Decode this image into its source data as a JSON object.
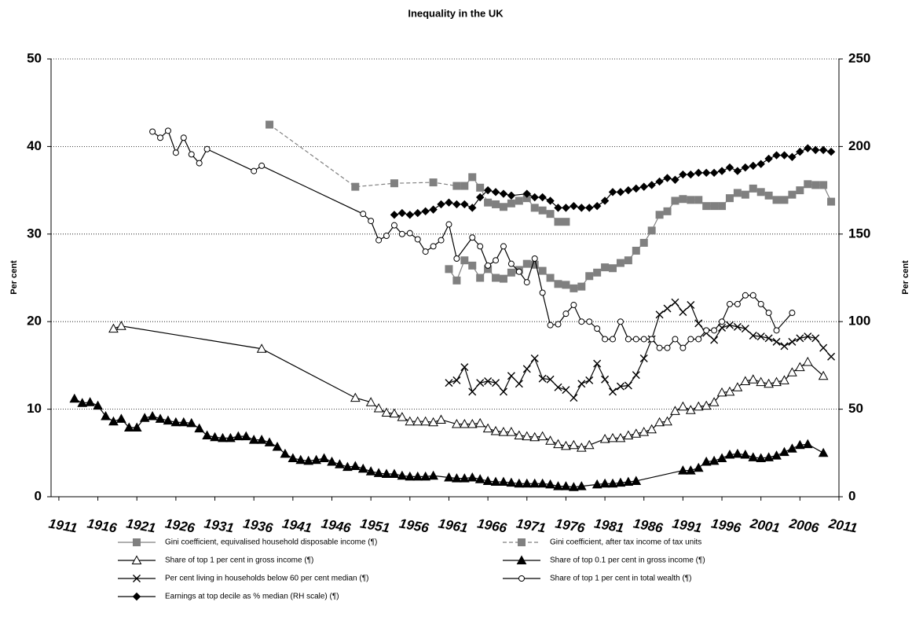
{
  "chart_data": {
    "type": "line",
    "title": "Inequality in the UK",
    "y_label": "Per cent",
    "y2_label": "Per cent",
    "xlim": [
      1910,
      2011
    ],
    "xticks": [
      1911,
      1916,
      1921,
      1926,
      1931,
      1936,
      1941,
      1946,
      1951,
      1956,
      1961,
      1966,
      1971,
      1976,
      1981,
      1986,
      1991,
      1996,
      2001,
      2006,
      2011
    ],
    "ylim": [
      0,
      50
    ],
    "yticks": [
      0,
      10,
      20,
      30,
      40,
      50
    ],
    "y2lim": [
      0,
      250
    ],
    "y2ticks": [
      0,
      50,
      100,
      150,
      200,
      250
    ],
    "grid": true,
    "series": [
      {
        "name": "Gini coefficient, equivalised household disposable income (¶)",
        "color": "#808080",
        "marker": "square",
        "dash": false,
        "axis": "y",
        "x": [
          1961,
          1962,
          1963,
          1964,
          1965,
          1966,
          1967,
          1968,
          1969,
          1970,
          1971,
          1972,
          1973,
          1974,
          1975,
          1976,
          1977,
          1978,
          1979,
          1980,
          1981,
          1982,
          1983,
          1984,
          1985,
          1986,
          1987,
          1988,
          1989,
          1990,
          1991,
          1992,
          1993,
          1994,
          1995,
          1996,
          1997,
          1998,
          1999,
          2000,
          2001,
          2002,
          2003,
          2004,
          2005,
          2006,
          2007,
          2008,
          2009,
          2010
        ],
        "values": [
          26,
          24.7,
          27,
          26.4,
          25,
          26,
          25,
          24.9,
          25.6,
          25.9,
          26.6,
          26.5,
          25.8,
          25,
          24.3,
          24.2,
          23.8,
          24,
          25.2,
          25.6,
          26.2,
          26.1,
          26.7,
          27,
          28.1,
          29,
          30.4,
          32.2,
          32.6,
          33.8,
          34,
          33.9,
          33.9,
          33.2,
          33.2,
          33.2,
          34.1,
          34.7,
          34.5,
          35.2,
          34.8,
          34.4,
          33.9,
          33.9,
          34.5,
          35,
          35.7,
          35.6,
          35.6,
          33.7
        ]
      },
      {
        "name": "Gini coefficient, after tax income of tax units",
        "color": "#808080",
        "marker": "square",
        "dash": true,
        "axis": "y",
        "x": [
          1938,
          1949,
          1954,
          1959,
          1962,
          1963,
          1964,
          1965,
          1966,
          1967,
          1968,
          1969,
          1970,
          1971,
          1972,
          1973,
          1974,
          1975,
          1976
        ],
        "values": [
          42.5,
          35.4,
          35.8,
          35.9,
          35.5,
          35.5,
          36.5,
          35.3,
          33.6,
          33.4,
          33.1,
          33.5,
          33.8,
          34.1,
          33,
          32.7,
          32.3,
          31.4,
          31.4
        ]
      },
      {
        "name": "Share of top 1 per cent in gross income (¶)",
        "color": "#000000",
        "marker": "triangle-open",
        "dash": false,
        "axis": "y",
        "x": [
          1918,
          1919,
          1937,
          1949,
          1951,
          1952,
          1953,
          1954,
          1955,
          1956,
          1957,
          1958,
          1959,
          1960,
          1962,
          1963,
          1964,
          1965,
          1966,
          1967,
          1968,
          1969,
          1970,
          1971,
          1972,
          1973,
          1974,
          1975,
          1976,
          1977,
          1978,
          1979,
          1981,
          1982,
          1983,
          1984,
          1985,
          1986,
          1987,
          1988,
          1989,
          1990,
          1991,
          1992,
          1993,
          1994,
          1995,
          1996,
          1997,
          1998,
          1999,
          2000,
          2001,
          2002,
          2003,
          2004,
          2005,
          2006,
          2007,
          2009
        ],
        "values": [
          19.2,
          19.5,
          16.9,
          11.3,
          10.8,
          10.1,
          9.6,
          9.5,
          9.1,
          8.6,
          8.6,
          8.6,
          8.5,
          8.8,
          8.3,
          8.3,
          8.3,
          8.4,
          7.8,
          7.5,
          7.4,
          7.4,
          7,
          6.9,
          6.8,
          6.9,
          6.4,
          6,
          5.8,
          5.9,
          5.6,
          5.9,
          6.6,
          6.7,
          6.7,
          7,
          7.2,
          7.4,
          7.7,
          8.5,
          8.6,
          9.8,
          10.3,
          9.9,
          10.3,
          10.4,
          10.8,
          11.9,
          12,
          12.5,
          13.2,
          13.4,
          13.1,
          12.9,
          13.1,
          13.3,
          14.2,
          14.8,
          15.4,
          13.8
        ]
      },
      {
        "name": "Share of top 0.1 per cent in gross income (¶)",
        "color": "#000000",
        "marker": "triangle",
        "dash": false,
        "axis": "y",
        "x": [
          1913,
          1914,
          1915,
          1916,
          1917,
          1918,
          1919,
          1920,
          1921,
          1922,
          1923,
          1924,
          1925,
          1926,
          1927,
          1928,
          1929,
          1930,
          1931,
          1932,
          1933,
          1934,
          1935,
          1936,
          1937,
          1938,
          1939,
          1940,
          1941,
          1942,
          1943,
          1944,
          1945,
          1946,
          1947,
          1948,
          1949,
          1950,
          1951,
          1952,
          1953,
          1954,
          1955,
          1956,
          1957,
          1958,
          1959,
          1961,
          1962,
          1963,
          1964,
          1965,
          1966,
          1967,
          1968,
          1969,
          1970,
          1971,
          1972,
          1973,
          1974,
          1975,
          1976,
          1977,
          1978,
          1980,
          1981,
          1982,
          1983,
          1984,
          1985,
          1991,
          1992,
          1993,
          1994,
          1995,
          1996,
          1997,
          1998,
          1999,
          2000,
          2001,
          2002,
          2003,
          2004,
          2005,
          2006,
          2007,
          2009
        ],
        "values": [
          11.2,
          10.7,
          10.8,
          10.4,
          9.2,
          8.6,
          8.9,
          7.9,
          7.9,
          9,
          9.2,
          8.9,
          8.7,
          8.5,
          8.5,
          8.4,
          7.8,
          7,
          6.8,
          6.7,
          6.7,
          6.9,
          6.9,
          6.5,
          6.5,
          6.2,
          5.7,
          4.9,
          4.4,
          4.2,
          4.1,
          4.2,
          4.4,
          4,
          3.7,
          3.4,
          3.5,
          3.2,
          2.9,
          2.7,
          2.6,
          2.6,
          2.4,
          2.3,
          2.3,
          2.3,
          2.4,
          2.2,
          2.1,
          2.1,
          2.2,
          2,
          1.8,
          1.7,
          1.7,
          1.6,
          1.5,
          1.5,
          1.5,
          1.5,
          1.4,
          1.2,
          1.2,
          1.1,
          1.2,
          1.4,
          1.5,
          1.5,
          1.6,
          1.7,
          1.8,
          3,
          3,
          3.3,
          4,
          4.1,
          4.4,
          4.8,
          4.9,
          4.8,
          4.5,
          4.4,
          4.5,
          4.7,
          5.1,
          5.5,
          5.9,
          6,
          5
        ]
      },
      {
        "name": "Per cent living in households below 60 per cent median (¶)",
        "color": "#000000",
        "marker": "x",
        "dash": false,
        "axis": "y",
        "x": [
          1961,
          1962,
          1963,
          1964,
          1965,
          1966,
          1967,
          1968,
          1969,
          1970,
          1971,
          1972,
          1973,
          1974,
          1975,
          1976,
          1977,
          1978,
          1979,
          1980,
          1981,
          1982,
          1983,
          1984,
          1985,
          1986,
          1987,
          1988,
          1989,
          1990,
          1991,
          1992,
          1993,
          1994,
          1995,
          1996,
          1997,
          1998,
          1999,
          2000,
          2001,
          2002,
          2003,
          2004,
          2005,
          2006,
          2007,
          2008,
          2009,
          2010
        ],
        "values": [
          13,
          13.3,
          14.8,
          12,
          13,
          13.2,
          13,
          12,
          13.8,
          12.9,
          14.6,
          15.8,
          13.5,
          13.4,
          12.5,
          12.2,
          11.3,
          12.9,
          13.3,
          15.2,
          13.4,
          12,
          12.6,
          12.7,
          13.9,
          15.8,
          18,
          20.8,
          21.5,
          22.2,
          21.1,
          21.9,
          19.8,
          18.7,
          17.9,
          19.3,
          19.6,
          19.4,
          19.2,
          18.4,
          18.3,
          18.1,
          17.7,
          17.2,
          17.7,
          18.1,
          18.3,
          18.1,
          17,
          16
        ]
      },
      {
        "name": "Share of top 1 per cent in total wealth (¶)",
        "color": "#000000",
        "marker": "circle-open",
        "dash": false,
        "axis": "y",
        "x": [
          1923,
          1924,
          1925,
          1926,
          1927,
          1928,
          1929,
          1930,
          1936,
          1937,
          1950,
          1951,
          1952,
          1953,
          1954,
          1955,
          1956,
          1957,
          1958,
          1959,
          1960,
          1961,
          1962,
          1964,
          1965,
          1966,
          1967,
          1968,
          1969,
          1970,
          1971,
          1972,
          1973,
          1974,
          1975,
          1976,
          1977,
          1978,
          1979,
          1980,
          1981,
          1982,
          1983,
          1984,
          1985,
          1986,
          1987,
          1988,
          1989,
          1990,
          1991,
          1992,
          1993,
          1994,
          1995,
          1996,
          1997,
          1998,
          1999,
          2000,
          2001,
          2002,
          2003,
          2005
        ],
        "values": [
          41.7,
          41,
          41.8,
          39.3,
          41,
          39.1,
          38.1,
          39.7,
          37.2,
          37.8,
          32.3,
          31.5,
          29.3,
          29.8,
          31,
          30,
          30.1,
          29.4,
          28,
          28.6,
          29.3,
          31.1,
          27.2,
          29.6,
          28.6,
          26.4,
          27,
          28.6,
          26.6,
          25.7,
          24.5,
          27.2,
          23.3,
          19.6,
          19.7,
          20.9,
          21.9,
          20,
          20,
          19.2,
          18,
          18,
          20,
          18,
          18,
          18,
          18,
          17,
          17,
          18,
          17,
          18,
          18,
          19,
          19,
          20,
          22,
          22,
          23,
          23,
          22,
          21,
          19,
          21
        ]
      },
      {
        "name": "Earnings at top decile as % median (RH scale) (¶)",
        "color": "#000000",
        "marker": "diamond",
        "dash": false,
        "axis": "y2",
        "x": [
          1954,
          1955,
          1956,
          1957,
          1958,
          1959,
          1960,
          1961,
          1962,
          1963,
          1964,
          1965,
          1966,
          1967,
          1968,
          1969,
          1971,
          1972,
          1973,
          1974,
          1975,
          1976,
          1977,
          1978,
          1979,
          1980,
          1981,
          1982,
          1983,
          1984,
          1985,
          1986,
          1987,
          1988,
          1989,
          1990,
          1991,
          1992,
          1993,
          1994,
          1995,
          1996,
          1997,
          1998,
          1999,
          2000,
          2001,
          2002,
          2003,
          2004,
          2005,
          2006,
          2007,
          2008,
          2009,
          2010
        ],
        "values": [
          161,
          162,
          161,
          162,
          163,
          164,
          167,
          168,
          167,
          167,
          165,
          171,
          175,
          174,
          173,
          172,
          173,
          171,
          171,
          169,
          165,
          165,
          166,
          165,
          165,
          166,
          169,
          174,
          174,
          175,
          176,
          177,
          178,
          180,
          182,
          181,
          184,
          184,
          185,
          185,
          185,
          186,
          188,
          186,
          188,
          189,
          190,
          193,
          195,
          195,
          194,
          197,
          199,
          198,
          198,
          197
        ]
      }
    ]
  }
}
